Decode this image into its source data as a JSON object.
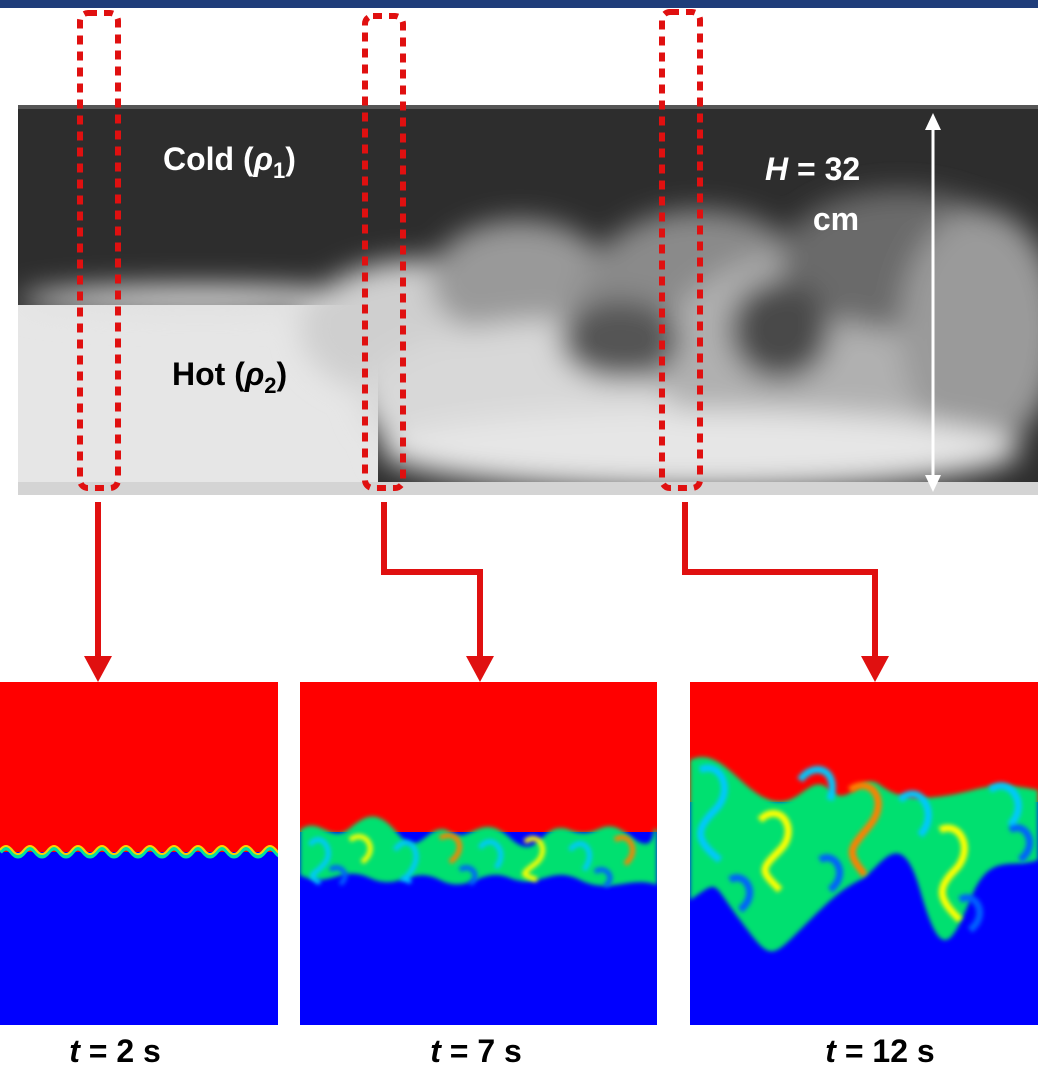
{
  "photo": {
    "cold_label": {
      "text": "Cold (",
      "symbol": "ρ",
      "subscript": "1",
      "close": ")"
    },
    "hot_label": {
      "text": "Hot (",
      "symbol": "ρ",
      "subscript": "2",
      "close": ")"
    },
    "height_label": {
      "symbol": "H",
      "text": "= 32",
      "unit": "cm"
    }
  },
  "panels": [
    {
      "symbol": "t",
      "label": "= 2 s"
    },
    {
      "symbol": "t",
      "label": "= 7 s"
    },
    {
      "symbol": "t",
      "label": "= 12 s"
    }
  ]
}
